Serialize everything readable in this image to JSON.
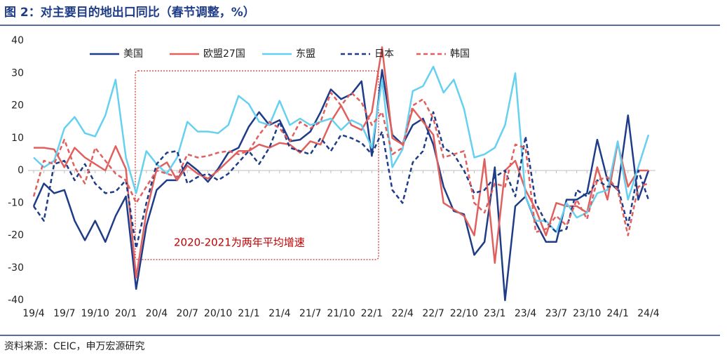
{
  "chart_data": {
    "type": "line",
    "title": "图 2：对主要目的地出口同比（春节调整，%）",
    "source": "资料来源：CEIC，申万宏源研究",
    "annotation": "2020-2021为两年平均增速",
    "categories": [
      "19/4",
      null,
      null,
      "19/7",
      null,
      null,
      "19/10",
      null,
      null,
      "20/1",
      null,
      null,
      "20/4",
      null,
      null,
      "20/7",
      null,
      null,
      "20/10",
      null,
      null,
      "21/1",
      null,
      null,
      "21/4",
      null,
      null,
      "21/7",
      null,
      null,
      "21/10",
      null,
      null,
      "22/1",
      null,
      null,
      "22/4",
      null,
      null,
      "22/7",
      null,
      null,
      "22/10",
      null,
      null,
      "23/1",
      null,
      null,
      "23/4",
      null,
      null,
      "23/7",
      null,
      null,
      "23/10",
      null,
      null,
      "24/1",
      null,
      null,
      "24/4"
    ],
    "ylim": [
      -40,
      40
    ],
    "yticks": [
      -40,
      -30,
      -20,
      -10,
      0,
      10,
      20,
      30,
      40
    ],
    "grid": false,
    "legend": "top",
    "series": [
      {
        "name": "美国",
        "color": "#1f3c88",
        "dashed": false,
        "values": [
          -11,
          -4,
          -7,
          -6,
          -15.5,
          -21.5,
          -15.5,
          -22,
          -14,
          -8,
          -36.5,
          -17,
          -6,
          -3,
          -3,
          2.5,
          0,
          -3.5,
          0.5,
          5.5,
          7,
          13.5,
          18,
          14,
          15.5,
          9,
          9.5,
          12,
          18,
          25,
          22,
          23.5,
          27.5,
          4.5,
          31,
          11,
          8,
          14,
          16,
          8,
          -5,
          -12.5,
          -13.5,
          -26,
          -22,
          1,
          -40,
          -11,
          -8,
          -16,
          -22,
          -22,
          -9,
          -9,
          -7,
          9.5,
          -3,
          -6,
          17,
          -9,
          0
        ]
      },
      {
        "name": "欧盟27国",
        "color": "#e0605e",
        "dashed": false,
        "values": [
          7,
          7,
          6.5,
          1,
          7,
          4,
          2,
          0,
          7.5,
          0.5,
          -33,
          -13,
          0.5,
          2.5,
          -3,
          1.5,
          -1,
          -2.5,
          0,
          3,
          6,
          6,
          8,
          7,
          8.5,
          8,
          5.5,
          9,
          8,
          15,
          20,
          14,
          12.5,
          18,
          38,
          10,
          8,
          19,
          15,
          11,
          -10,
          -12,
          -14,
          -20,
          3.5,
          -28.5,
          0,
          3,
          -6,
          -12,
          -20,
          -10,
          -11,
          -11,
          -13,
          1,
          -9,
          8.5,
          -5,
          0,
          0
        ]
      },
      {
        "name": "东盟",
        "color": "#66d0f0",
        "dashed": false,
        "values": [
          4,
          1,
          3,
          13,
          16.5,
          11.5,
          10.5,
          17,
          28,
          4,
          -7,
          6,
          2,
          -1,
          4,
          15,
          12,
          12,
          11.5,
          14,
          23,
          20.5,
          15,
          14,
          21.5,
          14,
          16,
          14,
          15,
          16,
          12.5,
          15.5,
          14,
          7,
          28,
          1,
          6.5,
          24.5,
          26,
          32,
          24,
          28,
          19,
          4,
          5,
          7,
          14,
          30,
          -8,
          -15.5,
          -15.5,
          -19,
          -10,
          -14.5,
          -13,
          -7,
          -6,
          9,
          -9,
          1,
          11
        ]
      },
      {
        "name": "日本",
        "color": "#1f3c88",
        "dashed": true,
        "values": [
          -11,
          -15.5,
          2,
          3,
          -3,
          2,
          -4,
          -7,
          -6.5,
          -3,
          -24,
          -10,
          2,
          5.5,
          6,
          -4,
          -2,
          -1,
          -3,
          -1,
          2.5,
          6,
          2,
          7,
          15,
          7,
          6,
          5,
          10,
          6,
          11,
          10,
          8.5,
          5,
          12,
          -6,
          -10,
          2.5,
          6,
          18,
          7,
          5,
          0,
          -7,
          -6,
          -2,
          0,
          -8,
          10.5,
          -10,
          -16,
          -19,
          -18,
          -6,
          -8,
          -3,
          -5,
          -5,
          -17,
          0,
          -9
        ]
      },
      {
        "name": "韩国",
        "color": "#e0605e",
        "dashed": true,
        "values": [
          -8,
          3,
          2,
          9.5,
          1,
          -4,
          7,
          3,
          -1,
          -3,
          -10,
          -5,
          0,
          -1,
          -2,
          5,
          4,
          4.5,
          5.5,
          6,
          5,
          6,
          11,
          15,
          13,
          9,
          15,
          13,
          15,
          24,
          20,
          24,
          21,
          14,
          18,
          5,
          7,
          20,
          22,
          16,
          4,
          5,
          6,
          -10,
          -13,
          -4,
          -5,
          8,
          7,
          -19,
          -18,
          -14,
          -17,
          -9,
          -15,
          -3,
          -2,
          -6,
          -20,
          -5,
          -4
        ]
      }
    ]
  }
}
